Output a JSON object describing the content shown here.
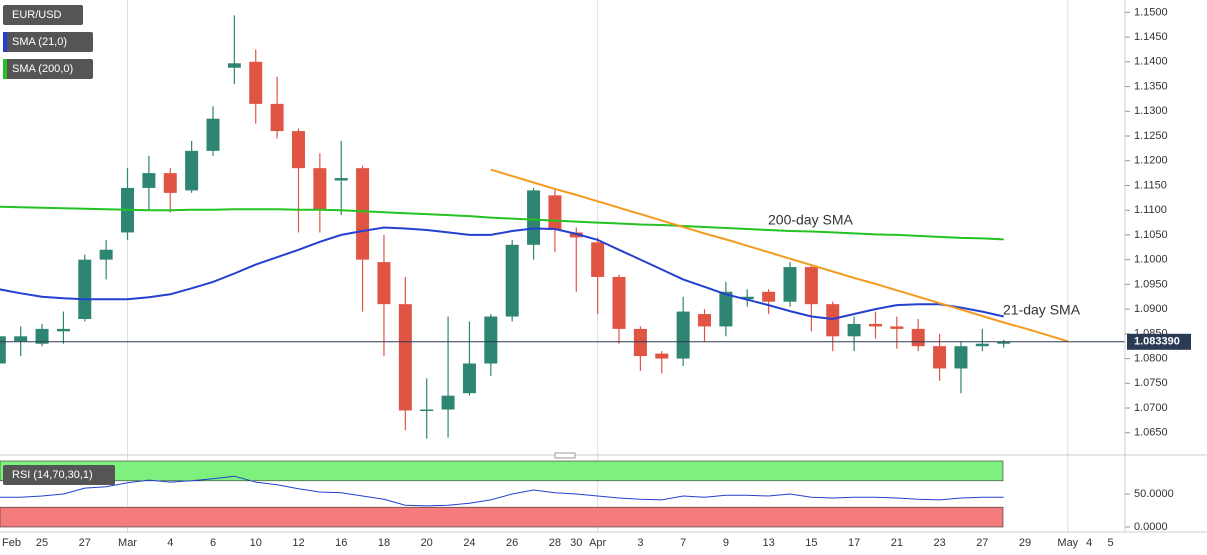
{
  "chart_data": [
    {
      "type": "candlestick",
      "categories": [
        "Feb",
        null,
        "25",
        null,
        "27",
        null,
        "Mar",
        null,
        "4",
        null,
        "6",
        null,
        "10",
        null,
        "12",
        null,
        "16",
        null,
        "18",
        null,
        "20",
        null,
        "24",
        null,
        "26",
        null,
        "28",
        "30",
        "Apr",
        null,
        "3",
        null,
        "7",
        null,
        "9",
        null,
        "13",
        null,
        "15",
        null,
        "17",
        null,
        "21",
        null,
        "23",
        null,
        "27",
        null,
        "29",
        null,
        "May",
        "4",
        "5"
      ],
      "series": [
        {
          "name": "EUR/USD",
          "up_color": "#2e8672",
          "down_color": "#e05444",
          "open": [
            1.079,
            1.0835,
            1.083,
            1.0855,
            1.088,
            1.1,
            1.1055,
            1.1145,
            1.1175,
            1.114,
            1.122,
            1.1388,
            1.14,
            1.1315,
            1.126,
            1.1185,
            1.116,
            1.1185,
            1.0995,
            1.091,
            1.0695,
            1.0697,
            1.073,
            1.079,
            1.0885,
            1.103,
            1.113,
            1.1055,
            1.1035,
            1.0965,
            1.086,
            1.081,
            1.08,
            1.089,
            1.0865,
            1.092,
            1.0935,
            1.0915,
            1.0985,
            1.091,
            1.0845,
            1.087,
            1.0865,
            1.086,
            1.0825,
            1.078,
            1.0825,
            1.083,
            null,
            null,
            null,
            null,
            null
          ],
          "high": [
            1.0855,
            1.0865,
            1.087,
            1.0895,
            1.101,
            1.104,
            1.1185,
            1.121,
            1.1185,
            1.124,
            1.131,
            1.1494,
            1.1425,
            1.137,
            1.1265,
            1.1215,
            1.124,
            1.119,
            1.105,
            1.0965,
            1.076,
            1.0885,
            1.0875,
            1.089,
            1.104,
            1.1145,
            1.1145,
            1.1065,
            1.1045,
            1.097,
            1.0865,
            1.0815,
            1.0925,
            1.09,
            1.0955,
            1.094,
            1.094,
            1.0995,
            1.099,
            1.0915,
            1.0885,
            1.0895,
            1.0885,
            1.088,
            1.085,
            1.0835,
            1.086,
            1.0838,
            null,
            null,
            null,
            null,
            null
          ],
          "low": [
            1.0785,
            1.0805,
            1.0825,
            1.083,
            1.0875,
            1.096,
            1.104,
            1.11,
            1.1095,
            1.1135,
            1.121,
            1.1355,
            1.1275,
            1.1245,
            1.1055,
            1.1055,
            1.109,
            1.0895,
            1.0805,
            1.0655,
            1.0638,
            1.064,
            1.0725,
            1.0765,
            1.0875,
            1.1,
            1.1015,
            1.0935,
            1.089,
            1.083,
            1.0775,
            1.077,
            1.0785,
            1.0835,
            1.0845,
            1.0905,
            1.089,
            1.0905,
            1.0855,
            1.0815,
            1.0815,
            1.084,
            1.082,
            1.0815,
            1.0755,
            1.073,
            1.0815,
            1.0822,
            null,
            null,
            null,
            null,
            null
          ],
          "close": [
            1.0845,
            1.0845,
            1.086,
            1.086,
            1.1,
            1.102,
            1.1145,
            1.1175,
            1.1135,
            1.122,
            1.1285,
            1.1397,
            1.1315,
            1.126,
            1.1185,
            1.11,
            1.1165,
            1.1,
            1.091,
            1.0695,
            1.0697,
            1.0725,
            1.079,
            1.0885,
            1.103,
            1.114,
            1.106,
            1.1045,
            1.0965,
            1.086,
            1.0805,
            1.08,
            1.0895,
            1.0865,
            1.0935,
            1.0925,
            1.0915,
            1.0985,
            1.091,
            1.0845,
            1.087,
            1.0865,
            1.086,
            1.0825,
            1.078,
            1.0825,
            1.083,
            1.0834,
            null,
            null,
            null,
            null,
            null
          ]
        },
        {
          "name": "SMA (21,0)",
          "color": "#2340d0",
          "annotation": "21-day SMA",
          "annotation_color": "#5b6ee0",
          "values": [
            1.094,
            1.0932,
            1.0925,
            1.0922,
            1.092,
            1.092,
            1.092,
            1.0924,
            1.093,
            1.0942,
            1.0955,
            1.0972,
            1.099,
            1.1005,
            1.102,
            1.1036,
            1.105,
            1.1058,
            1.1065,
            1.1063,
            1.106,
            1.1055,
            1.105,
            1.105,
            1.1058,
            1.1063,
            1.1062,
            1.1052,
            1.104,
            1.102,
            1.1,
            1.098,
            1.096,
            1.0945,
            1.093,
            1.0919,
            1.0908,
            1.0896,
            1.0885,
            1.088,
            1.089,
            1.09,
            1.0908,
            1.091,
            1.091,
            1.0903,
            1.0895,
            1.0885,
            null,
            null,
            null,
            null,
            null
          ]
        },
        {
          "name": "SMA (200,0)",
          "color": "#22c322",
          "annotation": "200-day SMA",
          "annotation_color": "#22b022",
          "values": [
            1.1107,
            1.1106,
            1.1105,
            1.1104,
            1.1103,
            1.1102,
            1.1101,
            1.11,
            1.11,
            1.1101,
            1.1101,
            1.1102,
            1.1102,
            1.1102,
            1.1101,
            1.1101,
            1.11,
            1.1098,
            1.1096,
            1.1094,
            1.1092,
            1.109,
            1.1088,
            1.1085,
            1.1083,
            1.1081,
            1.1079,
            1.1077,
            1.1075,
            1.1073,
            1.1071,
            1.107,
            1.1068,
            1.1066,
            1.1064,
            1.1062,
            1.106,
            1.1058,
            1.1057,
            1.1055,
            1.1053,
            1.1051,
            1.105,
            1.1048,
            1.1046,
            1.1044,
            1.1043,
            1.1041,
            null,
            null,
            null,
            null,
            null
          ]
        }
      ],
      "trendline": {
        "color": "#f59a1c",
        "values": [
          null,
          null,
          null,
          null,
          null,
          null,
          null,
          null,
          null,
          null,
          null,
          null,
          null,
          null,
          null,
          null,
          null,
          null,
          null,
          null,
          null,
          null,
          null,
          1.1182,
          1.1169,
          1.1156,
          1.1143,
          1.1131,
          1.1118,
          1.1105,
          1.1092,
          1.1079,
          1.1066,
          1.1053,
          1.1041,
          1.1028,
          1.1015,
          1.1002,
          1.0989,
          1.0976,
          1.0963,
          1.0951,
          1.0938,
          1.0925,
          1.0912,
          1.0899,
          1.0886,
          1.0873,
          1.0861,
          1.0848,
          1.0835,
          null,
          null
        ]
      },
      "last_price": {
        "value": 1.08339,
        "label": "1.083390",
        "color": "#2b3a55"
      },
      "ylim": [
        1.0605,
        1.1525
      ],
      "yticks": [
        {
          "value": 1.065,
          "label": "1.0650"
        },
        {
          "value": 1.07,
          "label": "1.0700"
        },
        {
          "value": 1.075,
          "label": "1.0750"
        },
        {
          "value": 1.08,
          "label": "1.0800"
        },
        {
          "value": 1.085,
          "label": "1.0850"
        },
        {
          "value": 1.09,
          "label": "1.0900"
        },
        {
          "value": 1.095,
          "label": "1.0950"
        },
        {
          "value": 1.1,
          "label": "1.1000"
        },
        {
          "value": 1.105,
          "label": "1.1050"
        },
        {
          "value": 1.11,
          "label": "1.1100"
        },
        {
          "value": 1.115,
          "label": "1.1150"
        },
        {
          "value": 1.12,
          "label": "1.1200"
        },
        {
          "value": 1.125,
          "label": "1.1250"
        },
        {
          "value": 1.13,
          "label": "1.1300"
        },
        {
          "value": 1.135,
          "label": "1.1350"
        },
        {
          "value": 1.14,
          "label": "1.1400"
        },
        {
          "value": 1.145,
          "label": "1.1450"
        },
        {
          "value": 1.15,
          "label": "1.1500"
        }
      ]
    },
    {
      "type": "line",
      "title": "RSI (14,70,30,1)",
      "series": [
        {
          "color": "#2340d0",
          "values": [
            45,
            45,
            47,
            50,
            59,
            61,
            67,
            71,
            68,
            70,
            73,
            77,
            68,
            64,
            58,
            53,
            52,
            47,
            42,
            33,
            32,
            33,
            36,
            41,
            50,
            56,
            52,
            50,
            47,
            44,
            42,
            41,
            47,
            45,
            48,
            48,
            47,
            50,
            45,
            44,
            45,
            45,
            44,
            42,
            41,
            44,
            45,
            45,
            null,
            null,
            null,
            null,
            null
          ]
        }
      ],
      "bands": [
        {
          "from": 70,
          "to": 100,
          "color": "#7ef07e"
        },
        {
          "from": 0,
          "to": 30,
          "color": "#f47c7c"
        }
      ],
      "ylim": [
        0,
        100
      ],
      "yticks": [
        {
          "value": 0,
          "label": "0.0000"
        },
        {
          "value": 50,
          "label": "50.0000"
        }
      ]
    }
  ]
}
